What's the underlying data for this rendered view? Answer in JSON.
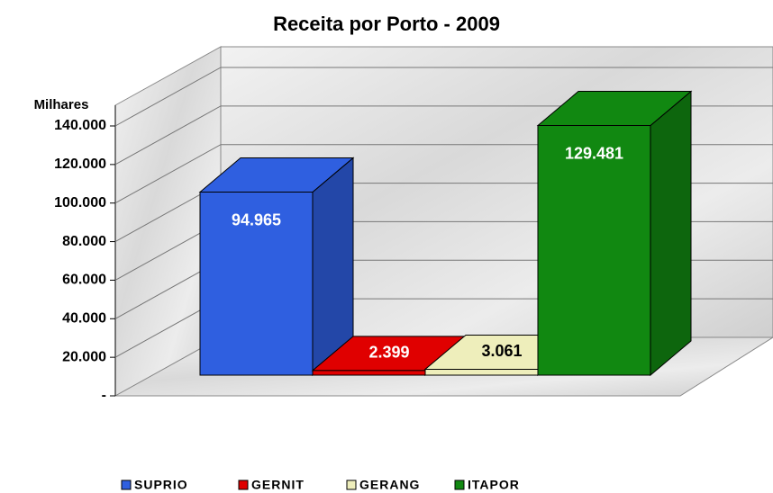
{
  "chart_data": {
    "type": "bar3d",
    "title": "Receita por Porto - 2009",
    "y_label": "Milhares",
    "categories": [
      "SUPRIO",
      "GERNIT",
      "GERANG",
      "ITAPOR"
    ],
    "values": [
      94965,
      2399,
      3061,
      129481
    ],
    "value_labels": [
      "94.965",
      "2.399",
      "3.061",
      "129.481"
    ],
    "colors": [
      "#2f5fe0",
      "#e00000",
      "#eeeebb",
      "#118811"
    ],
    "label_colors": [
      "#ffffff",
      "#ffffff",
      "#000000",
      "#ffffff"
    ],
    "ylim": [
      0,
      140000
    ],
    "yticks": [
      {
        "value": 0,
        "label": "-"
      },
      {
        "value": 20000,
        "label": "20.000"
      },
      {
        "value": 40000,
        "label": "40.000"
      },
      {
        "value": 60000,
        "label": "60.000"
      },
      {
        "value": 80000,
        "label": "80.000"
      },
      {
        "value": 100000,
        "label": "100.000"
      },
      {
        "value": 120000,
        "label": "120.000"
      },
      {
        "value": 140000,
        "label": "140.000"
      }
    ],
    "grid": true,
    "legend": "bottom"
  }
}
